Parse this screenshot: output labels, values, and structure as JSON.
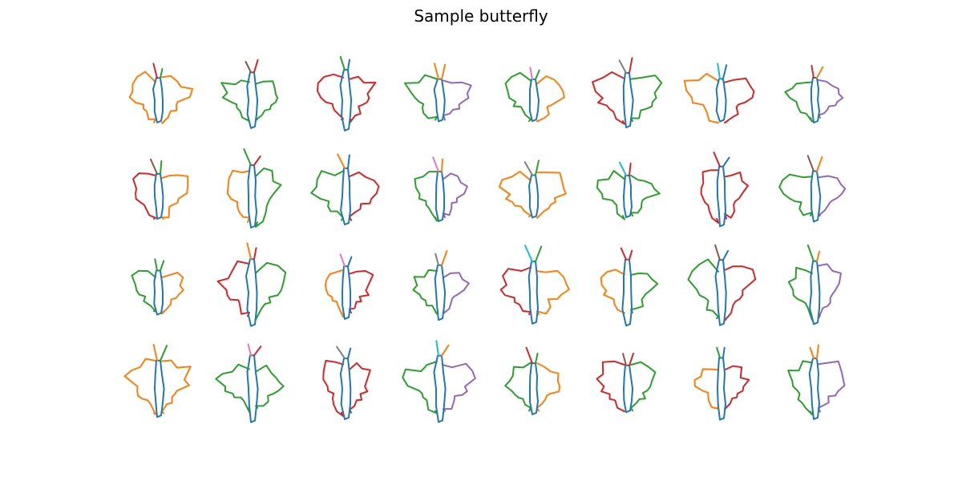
{
  "title": "Sample butterfly",
  "grid": {
    "rows": 4,
    "cols": 8
  },
  "stroke_colors": [
    "#1f77b4",
    "#ff7f0e",
    "#2ca02c",
    "#d62728",
    "#9467bd",
    "#8c564b",
    "#e377c2",
    "#7f7f7f",
    "#17becf"
  ],
  "subject": "butterfly"
}
